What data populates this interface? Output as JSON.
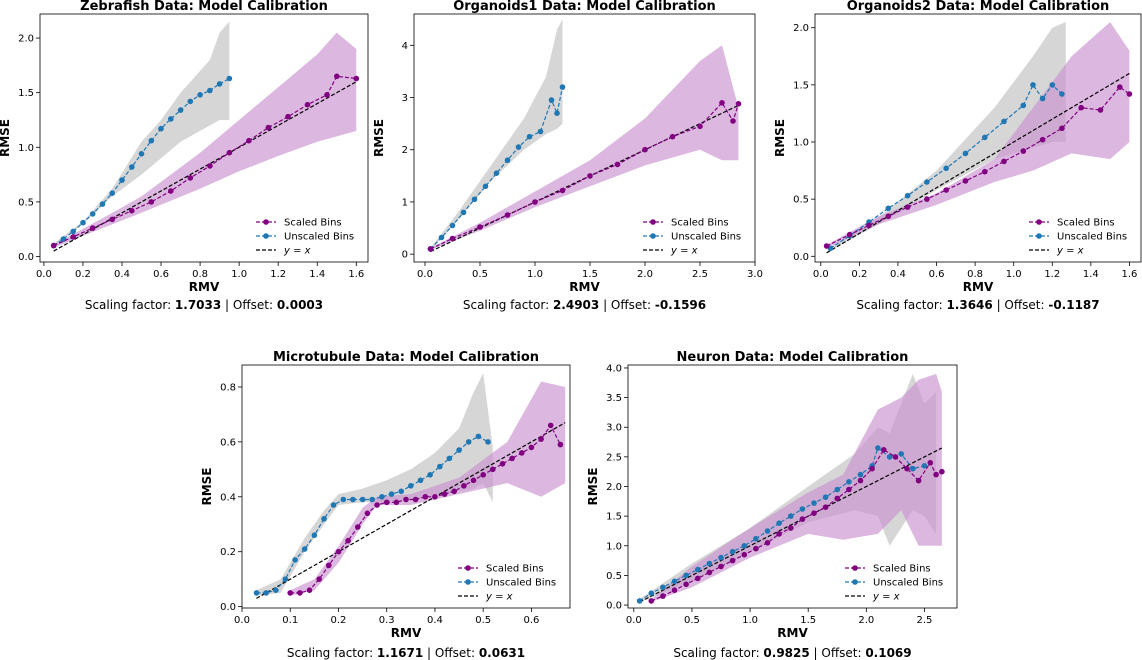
{
  "colors": {
    "scaled": "#800080",
    "scaled_band": "#c992cf",
    "unscaled": "#1f77b4",
    "unscaled_band": "#c0c0c0",
    "ideal": "#000000"
  },
  "chart_data": [
    {
      "type": "line",
      "title": "Zebrafish Data: Model Calibration",
      "xlabel": "RMV",
      "ylabel": "RMSE",
      "xlim": [
        -0.02,
        1.66
      ],
      "ylim": [
        -0.05,
        2.22
      ],
      "xticks": [
        0.0,
        0.2,
        0.4,
        0.6,
        0.8,
        1.0,
        1.2,
        1.4,
        1.6
      ],
      "yticks": [
        0.0,
        0.5,
        1.0,
        1.5,
        2.0
      ],
      "xtick_labels": [
        "0.0",
        "0.2",
        "0.4",
        "0.6",
        "0.8",
        "1.0",
        "1.2",
        "1.4",
        "1.6"
      ],
      "ytick_labels": [
        "0.0",
        "0.5",
        "1.0",
        "1.5",
        "2.0"
      ],
      "legend": {
        "placement": "lower-right",
        "scaled": "Scaled Bins",
        "unscaled": "Unscaled Bins",
        "ideal": "y = x"
      },
      "caption": {
        "scaling_label": "Scaling factor: ",
        "scaling_value": "1.7033",
        "sep": " | Offset: ",
        "offset_value": "0.0003"
      },
      "unscaled_band": {
        "x": [
          0.05,
          0.2,
          0.35,
          0.5,
          0.6,
          0.7,
          0.85,
          0.9,
          0.95
        ],
        "lo": [
          0.09,
          0.3,
          0.55,
          0.75,
          0.9,
          1.05,
          1.2,
          1.25,
          1.25
        ],
        "hi": [
          0.12,
          0.32,
          0.62,
          1.05,
          1.25,
          1.5,
          1.8,
          2.05,
          2.15
        ]
      },
      "unscaled": {
        "x": [
          0.05,
          0.1,
          0.15,
          0.2,
          0.25,
          0.3,
          0.35,
          0.4,
          0.45,
          0.5,
          0.55,
          0.6,
          0.65,
          0.7,
          0.75,
          0.8,
          0.85,
          0.9,
          0.95
        ],
        "y": [
          0.1,
          0.16,
          0.23,
          0.31,
          0.39,
          0.48,
          0.58,
          0.7,
          0.82,
          0.94,
          1.06,
          1.17,
          1.26,
          1.34,
          1.42,
          1.48,
          1.52,
          1.58,
          1.63
        ]
      },
      "scaled_band": {
        "x": [
          0.05,
          0.3,
          0.5,
          0.8,
          1.0,
          1.2,
          1.4,
          1.5,
          1.6
        ],
        "lo": [
          0.08,
          0.26,
          0.4,
          0.62,
          0.78,
          0.92,
          1.05,
          1.1,
          1.15
        ],
        "hi": [
          0.11,
          0.35,
          0.55,
          0.95,
          1.25,
          1.55,
          1.85,
          2.05,
          1.9
        ]
      },
      "scaled": {
        "x": [
          0.05,
          0.15,
          0.25,
          0.35,
          0.45,
          0.55,
          0.65,
          0.75,
          0.85,
          0.95,
          1.05,
          1.15,
          1.25,
          1.35,
          1.45,
          1.5,
          1.6
        ],
        "y": [
          0.1,
          0.18,
          0.26,
          0.34,
          0.42,
          0.5,
          0.6,
          0.72,
          0.83,
          0.95,
          1.06,
          1.18,
          1.28,
          1.39,
          1.48,
          1.65,
          1.63
        ]
      },
      "ideal": {
        "x": [
          0.05,
          1.6
        ],
        "y": [
          0.05,
          1.6
        ]
      }
    },
    {
      "type": "line",
      "title": "Organoids1 Data: Model Calibration",
      "xlabel": "RMV",
      "ylabel": "RMSE",
      "xlim": [
        -0.1,
        3.0
      ],
      "ylim": [
        -0.15,
        4.6
      ],
      "xticks": [
        0.0,
        0.5,
        1.0,
        1.5,
        2.0,
        2.5,
        3.0
      ],
      "yticks": [
        0,
        1,
        2,
        3,
        4
      ],
      "xtick_labels": [
        "0.0",
        "0.5",
        "1.0",
        "1.5",
        "2.0",
        "2.5",
        "3.0"
      ],
      "ytick_labels": [
        "0",
        "1",
        "2",
        "3",
        "4"
      ],
      "legend": {
        "placement": "lower-right",
        "scaled": "Scaled Bins",
        "unscaled": "Unscaled Bins",
        "ideal": "y = x"
      },
      "caption": {
        "scaling_label": "Scaling factor: ",
        "scaling_value": "2.4903",
        "sep": " | Offset: ",
        "offset_value": "-0.1596"
      },
      "unscaled_band": {
        "x": [
          0.05,
          0.3,
          0.6,
          0.9,
          1.1,
          1.2,
          1.25
        ],
        "lo": [
          0.08,
          0.65,
          1.4,
          2.0,
          2.3,
          2.4,
          2.5
        ],
        "hi": [
          0.12,
          0.8,
          1.7,
          2.6,
          3.4,
          4.3,
          4.5
        ]
      },
      "unscaled": {
        "x": [
          0.05,
          0.15,
          0.25,
          0.35,
          0.45,
          0.55,
          0.65,
          0.75,
          0.85,
          0.95,
          1.05,
          1.15,
          1.2,
          1.25
        ],
        "y": [
          0.1,
          0.32,
          0.55,
          0.8,
          1.05,
          1.3,
          1.55,
          1.8,
          2.05,
          2.25,
          2.35,
          2.95,
          2.7,
          3.2
        ]
      },
      "scaled_band": {
        "x": [
          0.05,
          0.5,
          1.0,
          1.5,
          2.0,
          2.5,
          2.7,
          2.85
        ],
        "lo": [
          0.08,
          0.45,
          0.9,
          1.3,
          1.7,
          2.0,
          1.8,
          1.8
        ],
        "hi": [
          0.12,
          0.6,
          1.2,
          1.8,
          2.6,
          3.7,
          4.0,
          2.8
        ]
      },
      "scaled": {
        "x": [
          0.05,
          0.25,
          0.5,
          0.75,
          1.0,
          1.25,
          1.5,
          1.75,
          2.0,
          2.25,
          2.5,
          2.7,
          2.8,
          2.85
        ],
        "y": [
          0.1,
          0.3,
          0.52,
          0.75,
          1.0,
          1.22,
          1.5,
          1.72,
          2.0,
          2.25,
          2.45,
          2.9,
          2.55,
          2.88
        ]
      },
      "ideal": {
        "x": [
          0.05,
          2.85
        ],
        "y": [
          0.05,
          2.85
        ]
      }
    },
    {
      "type": "line",
      "title": "Organoids2 Data: Model Calibration",
      "xlabel": "RMV",
      "ylabel": "RMSE",
      "xlim": [
        -0.03,
        1.66
      ],
      "ylim": [
        -0.05,
        2.12
      ],
      "xticks": [
        0.0,
        0.2,
        0.4,
        0.6,
        0.8,
        1.0,
        1.2,
        1.4,
        1.6
      ],
      "yticks": [
        0.0,
        0.5,
        1.0,
        1.5,
        2.0
      ],
      "xtick_labels": [
        "0.0",
        "0.2",
        "0.4",
        "0.6",
        "0.8",
        "1.0",
        "1.2",
        "1.4",
        "1.6"
      ],
      "ytick_labels": [
        "0.0",
        "0.5",
        "1.0",
        "1.5",
        "2.0"
      ],
      "legend": {
        "placement": "lower-right",
        "scaled": "Scaled Bins",
        "unscaled": "Unscaled Bins",
        "ideal": "y = x"
      },
      "caption": {
        "scaling_label": "Scaling factor: ",
        "scaling_value": "1.3646",
        "sep": " | Offset: ",
        "offset_value": "-0.1187"
      },
      "unscaled_band": {
        "x": [
          0.05,
          0.3,
          0.6,
          0.9,
          1.1,
          1.2,
          1.27
        ],
        "lo": [
          0.05,
          0.28,
          0.58,
          0.85,
          0.95,
          1.0,
          1.0
        ],
        "hi": [
          0.08,
          0.34,
          0.75,
          1.3,
          1.75,
          2.0,
          2.05
        ]
      },
      "unscaled": {
        "x": [
          0.05,
          0.15,
          0.25,
          0.35,
          0.45,
          0.55,
          0.65,
          0.75,
          0.85,
          0.95,
          1.05,
          1.1,
          1.15,
          1.2,
          1.25
        ],
        "y": [
          0.07,
          0.18,
          0.3,
          0.42,
          0.53,
          0.65,
          0.77,
          0.9,
          1.04,
          1.18,
          1.32,
          1.5,
          1.38,
          1.5,
          1.42
        ]
      },
      "scaled_band": {
        "x": [
          0.03,
          0.3,
          0.6,
          0.9,
          1.1,
          1.3,
          1.5,
          1.6
        ],
        "lo": [
          0.07,
          0.28,
          0.45,
          0.65,
          0.75,
          0.9,
          0.85,
          1.0
        ],
        "hi": [
          0.1,
          0.35,
          0.55,
          0.85,
          1.3,
          1.75,
          2.05,
          1.8
        ]
      },
      "scaled": {
        "x": [
          0.03,
          0.15,
          0.25,
          0.35,
          0.45,
          0.55,
          0.65,
          0.75,
          0.85,
          0.95,
          1.05,
          1.15,
          1.25,
          1.35,
          1.45,
          1.55,
          1.6
        ],
        "y": [
          0.09,
          0.19,
          0.27,
          0.35,
          0.43,
          0.5,
          0.58,
          0.66,
          0.74,
          0.83,
          0.92,
          1.02,
          1.12,
          1.3,
          1.28,
          1.48,
          1.42
        ]
      },
      "ideal": {
        "x": [
          0.03,
          1.6
        ],
        "y": [
          0.03,
          1.6
        ]
      }
    },
    {
      "type": "line",
      "title": "Microtubule Data: Model Calibration",
      "xlabel": "RMV",
      "ylabel": "RMSE",
      "xlim": [
        0.0,
        0.68
      ],
      "ylim": [
        -0.005,
        0.88
      ],
      "xticks": [
        0.0,
        0.1,
        0.2,
        0.3,
        0.4,
        0.5,
        0.6
      ],
      "yticks": [
        0.0,
        0.2,
        0.4,
        0.6,
        0.8
      ],
      "xtick_labels": [
        "0.0",
        "0.1",
        "0.2",
        "0.3",
        "0.4",
        "0.5",
        "0.6"
      ],
      "ytick_labels": [
        "0.0",
        "0.2",
        "0.4",
        "0.6",
        "0.8"
      ],
      "legend": {
        "placement": "lower-right",
        "scaled": "Scaled Bins",
        "unscaled": "Unscaled Bins",
        "ideal": "y = x"
      },
      "caption": {
        "scaling_label": "Scaling factor: ",
        "scaling_value": "1.1671",
        "sep": " | Offset: ",
        "offset_value": "0.0631"
      },
      "unscaled_band": {
        "x": [
          0.03,
          0.08,
          0.13,
          0.17,
          0.2,
          0.25,
          0.3,
          0.35,
          0.4,
          0.45,
          0.48,
          0.5,
          0.52
        ],
        "lo": [
          0.04,
          0.05,
          0.2,
          0.3,
          0.37,
          0.38,
          0.38,
          0.39,
          0.4,
          0.42,
          0.43,
          0.45,
          0.38
        ],
        "hi": [
          0.06,
          0.1,
          0.25,
          0.35,
          0.41,
          0.43,
          0.46,
          0.5,
          0.56,
          0.65,
          0.78,
          0.85,
          0.58
        ]
      },
      "unscaled": {
        "x": [
          0.03,
          0.05,
          0.07,
          0.09,
          0.11,
          0.13,
          0.15,
          0.17,
          0.19,
          0.21,
          0.23,
          0.25,
          0.27,
          0.29,
          0.31,
          0.33,
          0.35,
          0.37,
          0.39,
          0.41,
          0.43,
          0.45,
          0.47,
          0.49,
          0.51
        ],
        "y": [
          0.05,
          0.05,
          0.06,
          0.1,
          0.17,
          0.21,
          0.26,
          0.32,
          0.37,
          0.39,
          0.39,
          0.39,
          0.39,
          0.4,
          0.41,
          0.42,
          0.44,
          0.46,
          0.48,
          0.51,
          0.54,
          0.57,
          0.6,
          0.62,
          0.6
        ]
      },
      "scaled_band": {
        "x": [
          0.1,
          0.15,
          0.2,
          0.25,
          0.28,
          0.35,
          0.45,
          0.55,
          0.62,
          0.67
        ],
        "lo": [
          0.04,
          0.06,
          0.16,
          0.3,
          0.37,
          0.37,
          0.41,
          0.45,
          0.4,
          0.45
        ],
        "hi": [
          0.06,
          0.1,
          0.22,
          0.36,
          0.4,
          0.41,
          0.47,
          0.6,
          0.82,
          0.8
        ]
      },
      "scaled": {
        "x": [
          0.1,
          0.12,
          0.14,
          0.16,
          0.18,
          0.2,
          0.22,
          0.24,
          0.26,
          0.28,
          0.3,
          0.32,
          0.34,
          0.36,
          0.38,
          0.4,
          0.42,
          0.44,
          0.46,
          0.48,
          0.5,
          0.52,
          0.54,
          0.56,
          0.58,
          0.6,
          0.62,
          0.64,
          0.66
        ],
        "y": [
          0.05,
          0.05,
          0.06,
          0.1,
          0.15,
          0.2,
          0.24,
          0.29,
          0.34,
          0.37,
          0.38,
          0.38,
          0.39,
          0.39,
          0.4,
          0.4,
          0.41,
          0.42,
          0.44,
          0.46,
          0.48,
          0.5,
          0.52,
          0.54,
          0.56,
          0.58,
          0.61,
          0.66,
          0.59
        ]
      },
      "ideal": {
        "x": [
          0.03,
          0.67
        ],
        "y": [
          0.03,
          0.67
        ]
      }
    },
    {
      "type": "line",
      "title": "Neuron Data: Model Calibration",
      "xlabel": "RMV",
      "ylabel": "RMSE",
      "xlim": [
        -0.05,
        2.78
      ],
      "ylim": [
        -0.05,
        4.05
      ],
      "xticks": [
        0.0,
        0.5,
        1.0,
        1.5,
        2.0,
        2.5
      ],
      "yticks": [
        0.0,
        0.5,
        1.0,
        1.5,
        2.0,
        2.5,
        3.0,
        3.5,
        4.0
      ],
      "xtick_labels": [
        "0.0",
        "0.5",
        "1.0",
        "1.5",
        "2.0",
        "2.5"
      ],
      "ytick_labels": [
        "0.0",
        "0.5",
        "1.0",
        "1.5",
        "2.0",
        "2.5",
        "3.0",
        "3.5",
        "4.0"
      ],
      "legend": {
        "placement": "lower-right",
        "scaled": "Scaled Bins",
        "unscaled": "Unscaled Bins",
        "ideal": "y = x"
      },
      "caption": {
        "scaling_label": "Scaling factor: ",
        "scaling_value": "0.9825",
        "sep": " | Offset: ",
        "offset_value": "0.1069"
      },
      "unscaled_band": {
        "x": [
          0.05,
          0.5,
          1.0,
          1.5,
          1.9,
          2.1,
          2.2,
          2.4,
          2.5,
          2.6
        ],
        "lo": [
          0.05,
          0.4,
          0.9,
          1.4,
          1.6,
          1.5,
          1.0,
          1.6,
          1.5,
          1.2
        ],
        "hi": [
          0.1,
          0.7,
          1.3,
          2.0,
          2.55,
          3.0,
          2.9,
          3.9,
          3.4,
          3.6
        ]
      },
      "unscaled": {
        "x": [
          0.05,
          0.15,
          0.25,
          0.35,
          0.45,
          0.55,
          0.65,
          0.75,
          0.85,
          0.95,
          1.05,
          1.15,
          1.25,
          1.35,
          1.45,
          1.55,
          1.65,
          1.75,
          1.85,
          1.95,
          2.05,
          2.1,
          2.2,
          2.3,
          2.4,
          2.5
        ],
        "y": [
          0.07,
          0.2,
          0.3,
          0.4,
          0.5,
          0.6,
          0.7,
          0.8,
          0.9,
          1.0,
          1.12,
          1.25,
          1.38,
          1.5,
          1.62,
          1.72,
          1.82,
          1.95,
          2.08,
          2.2,
          2.35,
          2.65,
          2.5,
          2.55,
          2.3,
          2.35
        ]
      },
      "scaled_band": {
        "x": [
          0.15,
          0.5,
          1.0,
          1.5,
          1.8,
          2.1,
          2.3,
          2.45,
          2.6,
          2.65
        ],
        "lo": [
          0.05,
          0.3,
          0.8,
          1.2,
          1.1,
          1.2,
          1.6,
          1.0,
          1.0,
          1.0
        ],
        "hi": [
          0.1,
          0.65,
          1.3,
          1.9,
          2.2,
          3.3,
          3.5,
          3.8,
          3.9,
          3.6
        ]
      },
      "scaled": {
        "x": [
          0.15,
          0.25,
          0.35,
          0.45,
          0.55,
          0.65,
          0.75,
          0.85,
          0.95,
          1.05,
          1.15,
          1.25,
          1.35,
          1.45,
          1.55,
          1.65,
          1.75,
          1.85,
          1.95,
          2.05,
          2.15,
          2.25,
          2.35,
          2.45,
          2.55,
          2.6,
          2.65
        ],
        "y": [
          0.07,
          0.15,
          0.25,
          0.35,
          0.45,
          0.55,
          0.65,
          0.75,
          0.85,
          0.95,
          1.05,
          1.2,
          1.3,
          1.45,
          1.55,
          1.65,
          1.8,
          1.95,
          2.1,
          2.3,
          2.62,
          2.5,
          2.3,
          2.1,
          2.4,
          2.2,
          2.25
        ]
      },
      "ideal": {
        "x": [
          0.05,
          2.65
        ],
        "y": [
          0.05,
          2.65
        ]
      }
    }
  ]
}
